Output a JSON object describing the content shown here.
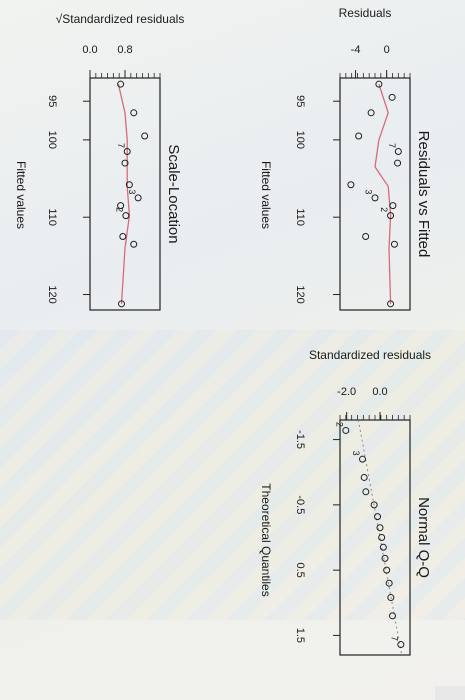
{
  "chart_data": [
    {
      "type": "scatter",
      "title": "Residuals vs Fitted",
      "xlabel": "Fitted values",
      "ylabel": "Residuals",
      "xlim": [
        92,
        122
      ],
      "ylim": [
        -6,
        3
      ],
      "x_ticks": [
        "95",
        "100",
        "110",
        "120"
      ],
      "y_ticks": [
        "-4",
        "0"
      ],
      "points": [
        {
          "x": 92.8,
          "y": -1.0,
          "label": ""
        },
        {
          "x": 94.5,
          "y": 0.7,
          "label": ""
        },
        {
          "x": 96.5,
          "y": -2.0,
          "label": ""
        },
        {
          "x": 99.5,
          "y": -3.6,
          "label": ""
        },
        {
          "x": 101.5,
          "y": 1.5,
          "label": "7"
        },
        {
          "x": 103.0,
          "y": 1.4,
          "label": ""
        },
        {
          "x": 105.8,
          "y": -4.6,
          "label": ""
        },
        {
          "x": 107.5,
          "y": -1.5,
          "label": "3"
        },
        {
          "x": 108.5,
          "y": 0.8,
          "label": ""
        },
        {
          "x": 109.8,
          "y": 0.5,
          "label": "2"
        },
        {
          "x": 112.5,
          "y": -2.7,
          "label": ""
        },
        {
          "x": 113.5,
          "y": 1.0,
          "label": ""
        },
        {
          "x": 121.2,
          "y": 0.5,
          "label": ""
        }
      ],
      "smooth": [
        [
          92.8,
          -1.0
        ],
        [
          96.5,
          0.2
        ],
        [
          100,
          -1.0
        ],
        [
          103.5,
          -1.5
        ],
        [
          106,
          0.2
        ],
        [
          109.8,
          0.5
        ],
        [
          114,
          0.3
        ],
        [
          121.2,
          0.5
        ]
      ]
    },
    {
      "type": "scatter",
      "title": "Normal Q-Q",
      "xlabel": "Theoretical Quantiles",
      "ylabel": "Standardized residuals",
      "xlim": [
        -1.8,
        1.8
      ],
      "ylim": [
        -2.4,
        1.8
      ],
      "x_ticks": [
        "-1.5",
        "-0.5",
        "0.5",
        "1.5"
      ],
      "y_ticks": [
        "-2.0",
        "0.0"
      ],
      "points": [
        {
          "x": -1.64,
          "y": -2.05,
          "label": "2"
        },
        {
          "x": -1.2,
          "y": -1.05,
          "label": "3"
        },
        {
          "x": -0.92,
          "y": -0.95,
          "label": ""
        },
        {
          "x": -0.7,
          "y": -0.85,
          "label": ""
        },
        {
          "x": -0.5,
          "y": -0.35,
          "label": ""
        },
        {
          "x": -0.32,
          "y": -0.15,
          "label": ""
        },
        {
          "x": -0.15,
          "y": 0.0,
          "label": ""
        },
        {
          "x": 0.0,
          "y": 0.1,
          "label": ""
        },
        {
          "x": 0.15,
          "y": 0.2,
          "label": ""
        },
        {
          "x": 0.32,
          "y": 0.3,
          "label": ""
        },
        {
          "x": 0.5,
          "y": 0.4,
          "label": ""
        },
        {
          "x": 0.7,
          "y": 0.55,
          "label": ""
        },
        {
          "x": 0.92,
          "y": 0.65,
          "label": ""
        },
        {
          "x": 1.2,
          "y": 0.75,
          "label": ""
        },
        {
          "x": 1.64,
          "y": 1.25,
          "label": "7"
        }
      ],
      "ref_line": [
        [
          -1.8,
          -1.3
        ],
        [
          1.8,
          1.3
        ]
      ]
    },
    {
      "type": "scatter",
      "title": "Scale-Location",
      "xlabel": "Fitted values",
      "ylabel": "√Standardized residuals",
      "xlim": [
        92,
        122
      ],
      "ylim": [
        0,
        1.6
      ],
      "x_ticks": [
        "95",
        "100",
        "110",
        "120"
      ],
      "y_ticks": [
        "0.0",
        "0.8"
      ],
      "points": [
        {
          "x": 92.8,
          "y": 0.7,
          "label": ""
        },
        {
          "x": 96.5,
          "y": 1.0,
          "label": ""
        },
        {
          "x": 99.5,
          "y": 1.25,
          "label": ""
        },
        {
          "x": 101.5,
          "y": 0.85,
          "label": "7"
        },
        {
          "x": 103.0,
          "y": 0.8,
          "label": ""
        },
        {
          "x": 105.8,
          "y": 0.9,
          "label": ""
        },
        {
          "x": 107.5,
          "y": 1.1,
          "label": "3"
        },
        {
          "x": 108.5,
          "y": 0.7,
          "label": ""
        },
        {
          "x": 109.8,
          "y": 0.82,
          "label": "2"
        },
        {
          "x": 112.5,
          "y": 0.75,
          "label": ""
        },
        {
          "x": 113.5,
          "y": 1.0,
          "label": ""
        },
        {
          "x": 121.2,
          "y": 0.72,
          "label": ""
        }
      ],
      "smooth": [
        [
          92.8,
          0.65
        ],
        [
          96.5,
          0.8
        ],
        [
          100,
          0.85
        ],
        [
          103.5,
          0.85
        ],
        [
          106,
          0.85
        ],
        [
          109.8,
          0.9
        ],
        [
          114,
          0.8
        ],
        [
          121.2,
          0.72
        ]
      ]
    }
  ],
  "colors": {
    "points": "#1f1f1f",
    "smooth": "#d86a78",
    "refline": "#8a8a8a",
    "frame": "#222222"
  }
}
